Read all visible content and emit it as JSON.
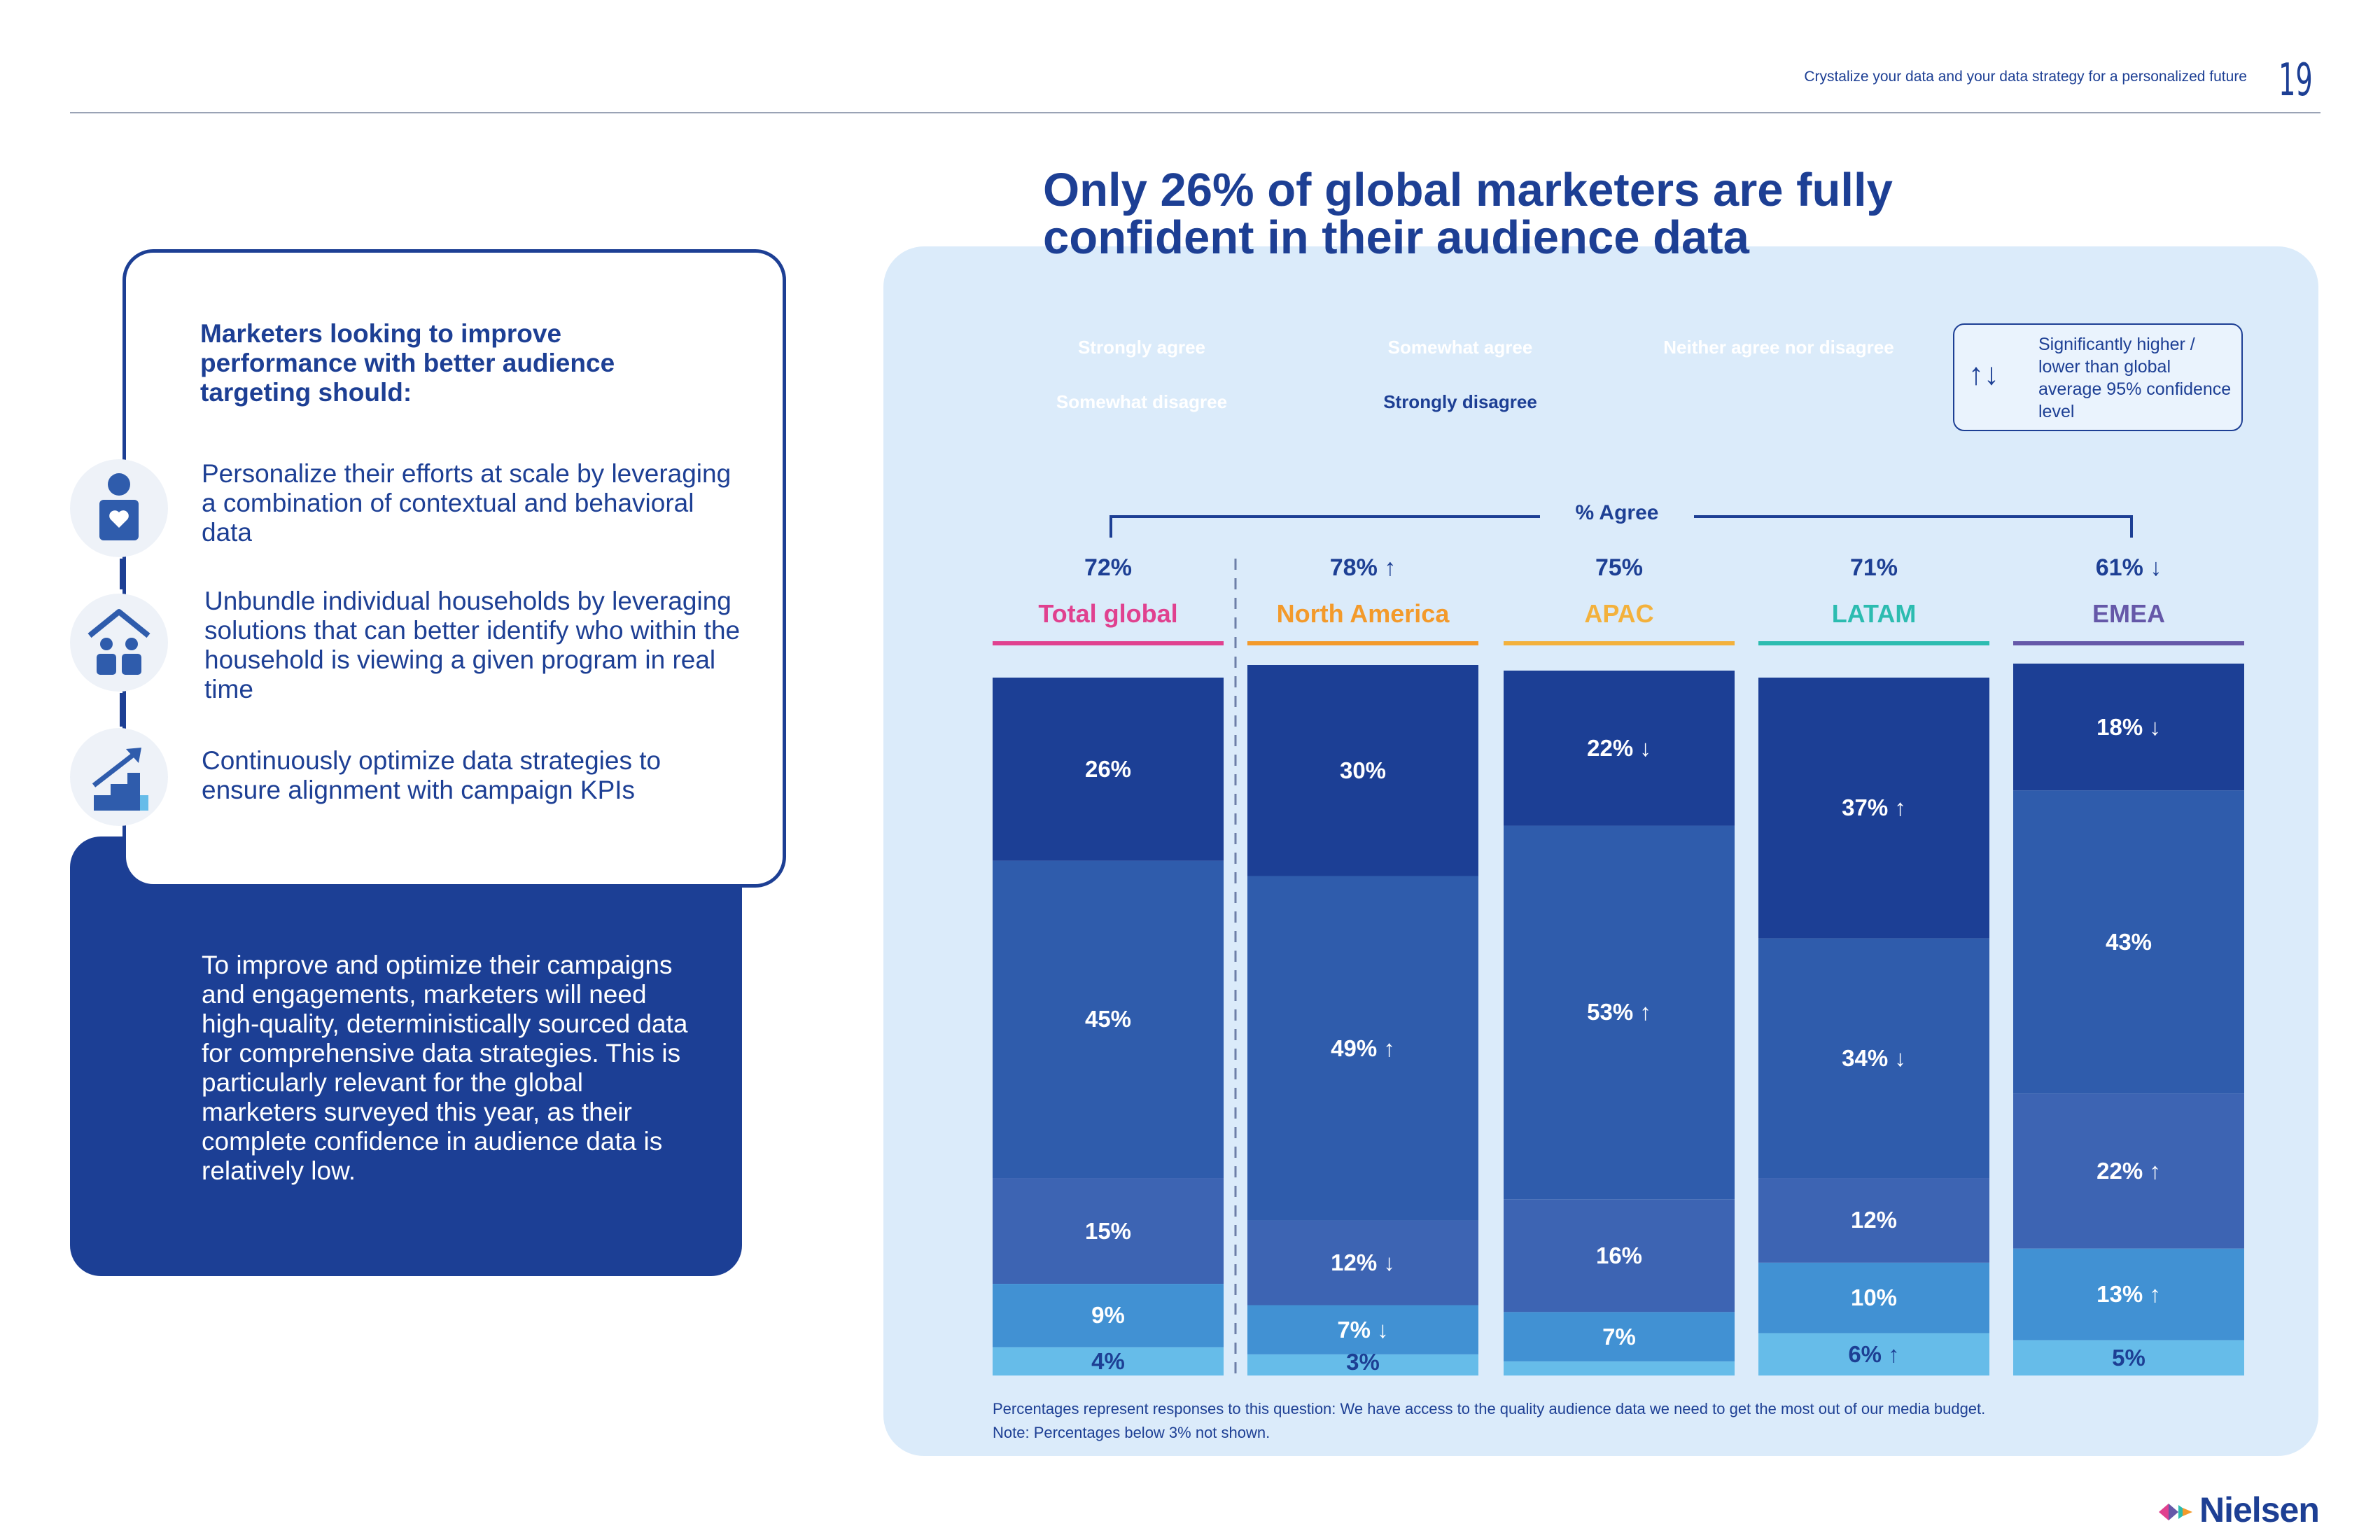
{
  "header": {
    "subtitle": "Crystalize your data and your data strategy for a personalized future",
    "page_number": "19"
  },
  "left": {
    "card_heading": "Marketers looking to improve performance with better audience targeting should:",
    "bullets": [
      {
        "icon": "person-heart-icon",
        "text": "Personalize their efforts at scale by leveraging a combination of contextual and behavioral data"
      },
      {
        "icon": "household-icon",
        "text": "Unbundle individual households by leveraging solutions that can better identify who within the household is viewing a given program in real time"
      },
      {
        "icon": "growth-stairs-icon",
        "text": "Continuously optimize data strategies to ensure alignment with campaign KPIs"
      }
    ],
    "blue_box_text": "To improve and optimize their campaigns and engagements, marketers will need high-quality, deterministically sourced data for comprehensive data strategies. This is particularly relevant for the global marketers surveyed this year, as their complete confidence in audience data is relatively low."
  },
  "legend": {
    "items": [
      "Strongly agree",
      "Somewhat agree",
      "Neither agree nor disagree",
      "Somewhat disagree",
      "Strongly disagree"
    ],
    "colors": [
      "#1c3f95",
      "#2f5cac",
      "#3d64b3",
      "#4191d3",
      "#66bce9"
    ],
    "key_arrows": "↑↓",
    "key_text": "Significantly higher / lower than global average 95% confidence level"
  },
  "brand": {
    "logo": "Nielsen"
  },
  "chart_data": {
    "type": "bar",
    "stacked": true,
    "title": "Only 26% of global marketers are fully confident in their audience data",
    "group_label": "% Agree",
    "categories": [
      "Total global",
      "North America",
      "APAC",
      "LATAM",
      "EMEA"
    ],
    "category_colors": [
      "#e0418f",
      "#f39a2b",
      "#f3b13c",
      "#2cbcb0",
      "#6558a8"
    ],
    "agree_totals": [
      "72%",
      "78%",
      "75%",
      "71%",
      "61%"
    ],
    "agree_flags": [
      "",
      "up",
      "",
      "",
      "down"
    ],
    "series": [
      {
        "name": "Strongly agree",
        "values": [
          26,
          30,
          22,
          37,
          18
        ],
        "flags": [
          "",
          "",
          "down",
          "up",
          "down"
        ]
      },
      {
        "name": "Somewhat agree",
        "values": [
          45,
          49,
          53,
          34,
          43
        ],
        "flags": [
          "",
          "up",
          "up",
          "down",
          ""
        ]
      },
      {
        "name": "Neither agree nor disagree",
        "values": [
          15,
          12,
          16,
          12,
          22
        ],
        "flags": [
          "",
          "down",
          "",
          "",
          "up"
        ]
      },
      {
        "name": "Somewhat disagree",
        "values": [
          9,
          7,
          7,
          10,
          13
        ],
        "flags": [
          "",
          "down",
          "",
          "",
          "up"
        ]
      },
      {
        "name": "Strongly disagree",
        "values": [
          4,
          3,
          2,
          6,
          5
        ],
        "flags": [
          "",
          "",
          "",
          "up",
          ""
        ],
        "shown": [
          true,
          true,
          false,
          true,
          true
        ]
      }
    ],
    "ylim": [
      0,
      100
    ],
    "footnote_1": "Percentages represent responses to this question: We have access to the quality audience data we need to get the most out of our media budget.",
    "footnote_2": "Note: Percentages below 3% not shown."
  }
}
